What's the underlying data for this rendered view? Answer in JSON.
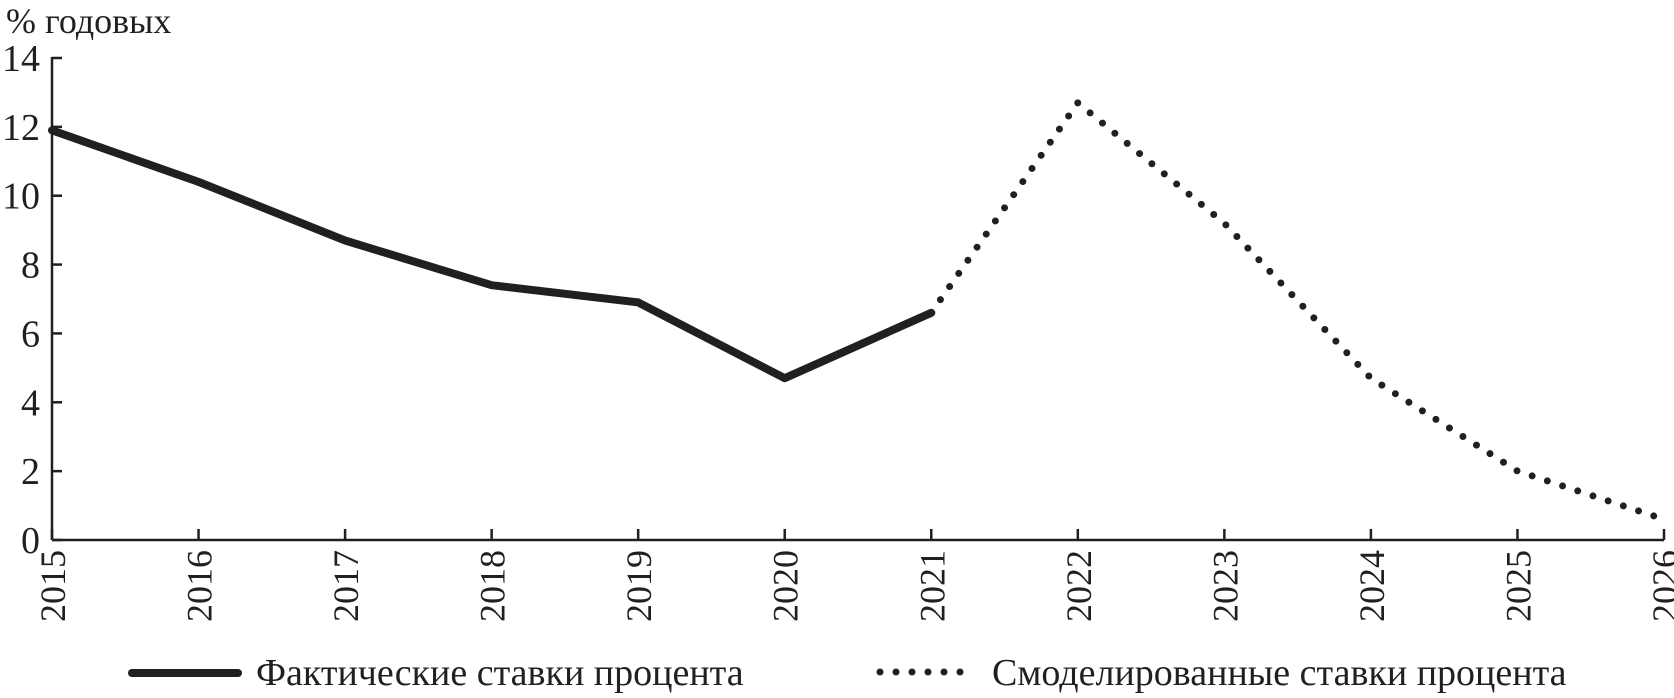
{
  "chart_data": {
    "type": "line",
    "ylabel": "% годовых",
    "ylim": [
      0,
      14
    ],
    "yticks": [
      0,
      2,
      4,
      6,
      8,
      10,
      12,
      14
    ],
    "xlim": [
      2015,
      2026
    ],
    "xticks": [
      "2015",
      "2016",
      "2017",
      "2018",
      "2019",
      "2020",
      "2021",
      "2022",
      "2023",
      "2024",
      "2025",
      "2026"
    ],
    "grid": false,
    "legend_position": "bottom",
    "line_color": "#231f20",
    "series": [
      {
        "name": "Фактические ставки процента",
        "style": "solid",
        "points": [
          {
            "x": 2015,
            "y": 11.9
          },
          {
            "x": 2016,
            "y": 10.4
          },
          {
            "x": 2017,
            "y": 8.7
          },
          {
            "x": 2018,
            "y": 7.4
          },
          {
            "x": 2019,
            "y": 6.9
          },
          {
            "x": 2020,
            "y": 4.7
          },
          {
            "x": 2021,
            "y": 6.6
          }
        ]
      },
      {
        "name": "Смоделированные ставки процента",
        "style": "dotted",
        "points": [
          {
            "x": 2021,
            "y": 6.6
          },
          {
            "x": 2022,
            "y": 12.7
          },
          {
            "x": 2023,
            "y": 9.2
          },
          {
            "x": 2024,
            "y": 4.7
          },
          {
            "x": 2025,
            "y": 2.0
          },
          {
            "x": 2026,
            "y": 0.6
          }
        ]
      }
    ]
  }
}
